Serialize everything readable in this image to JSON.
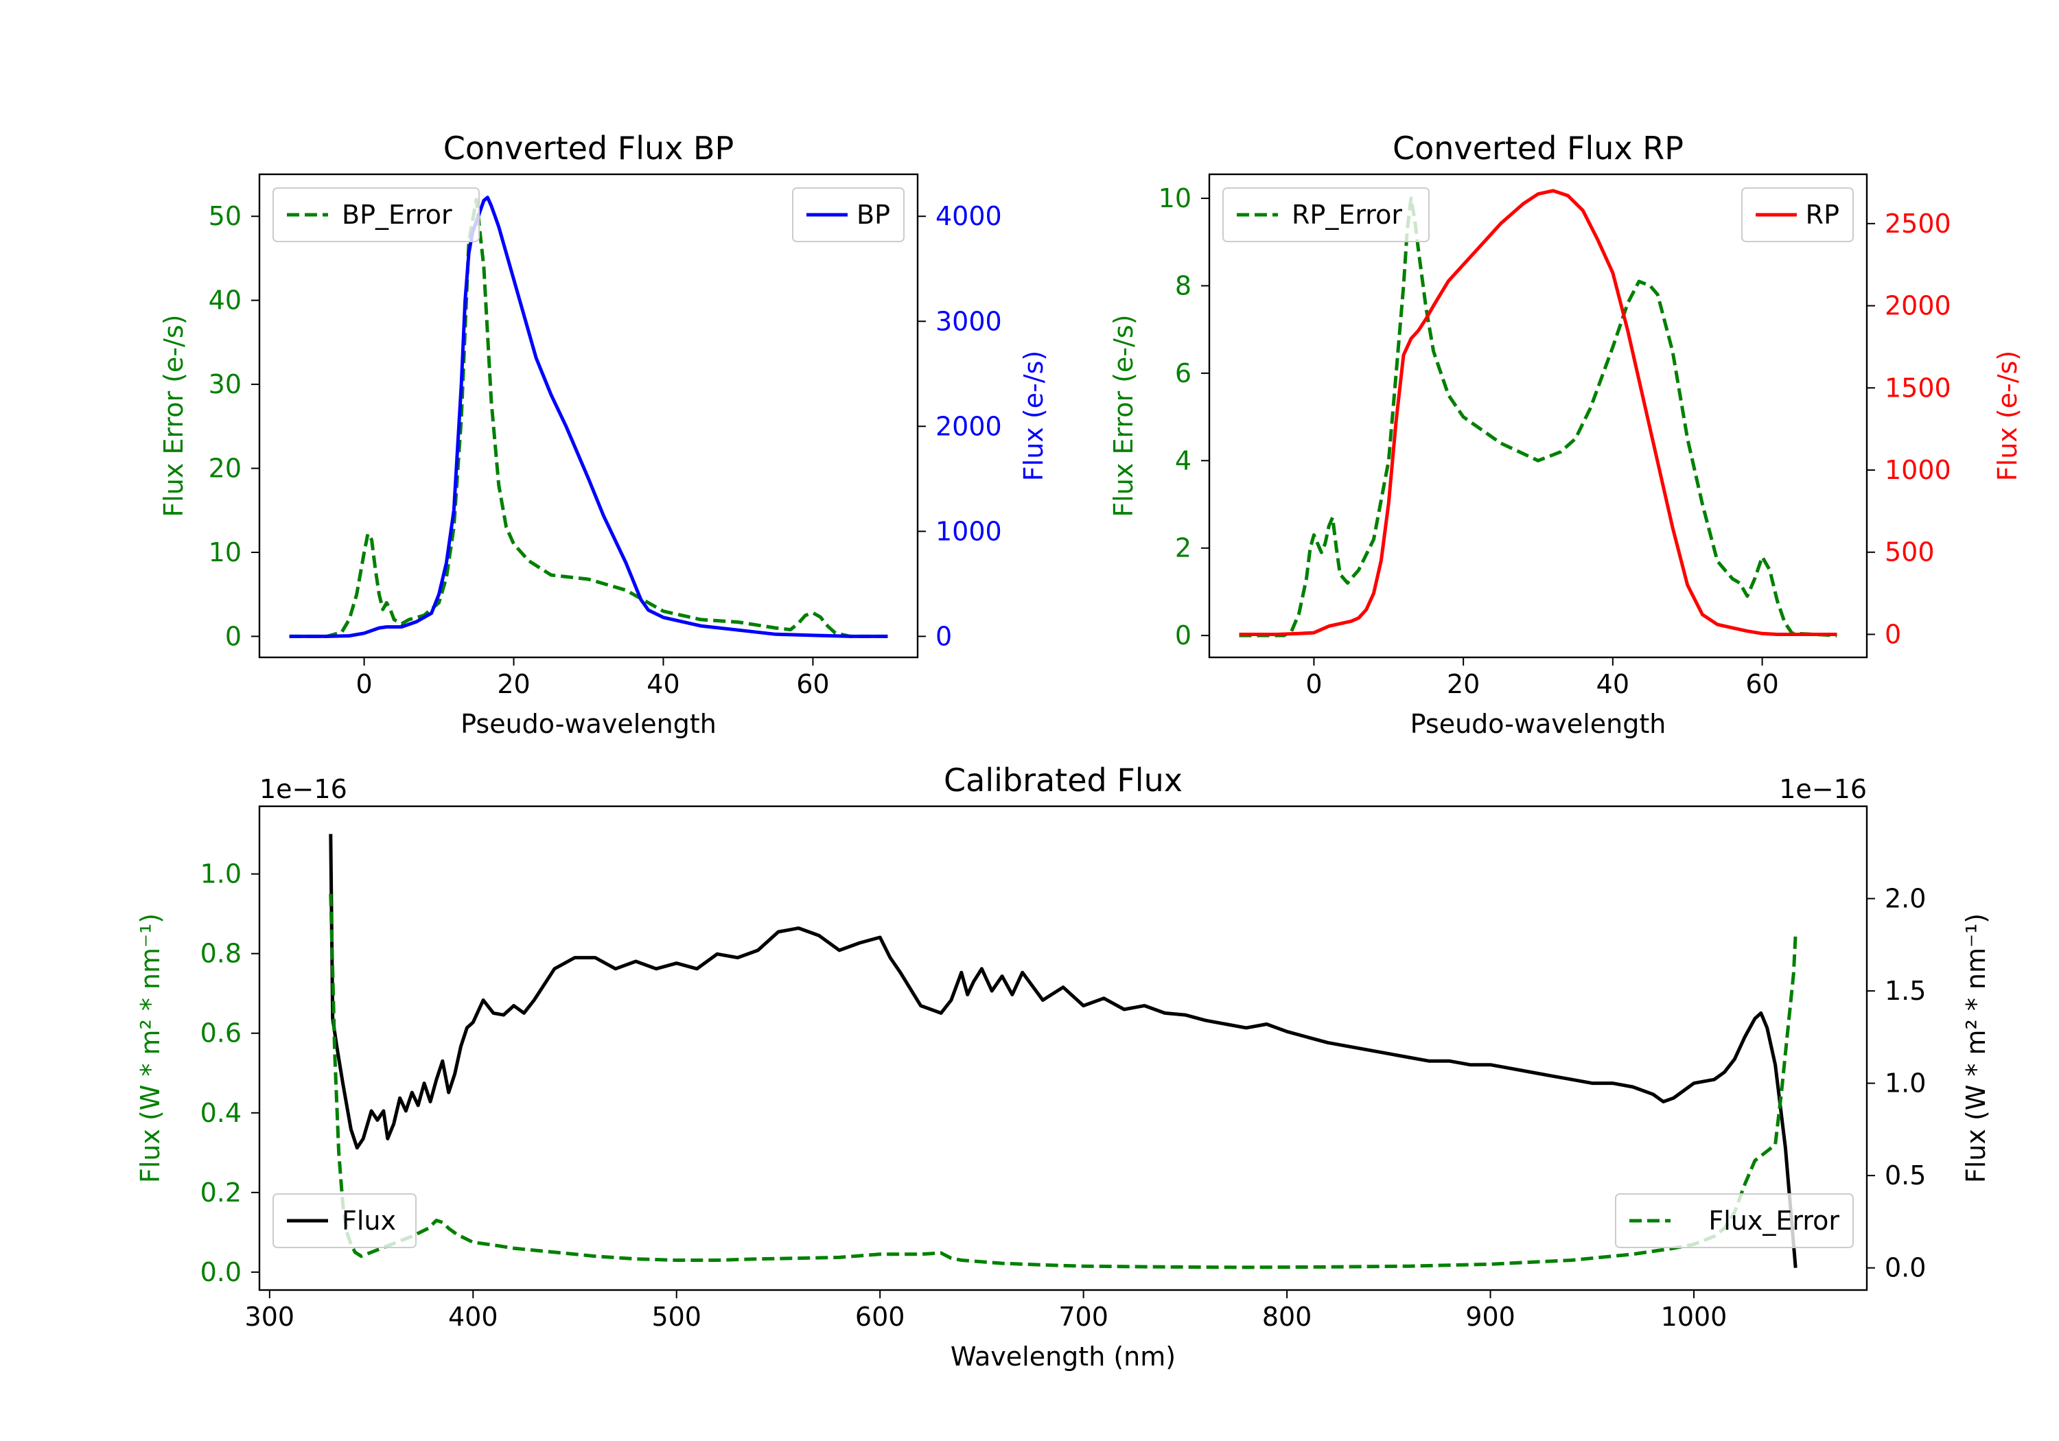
{
  "colors": {
    "bp": "#0000ff",
    "rp": "#ff0000",
    "error": "#008000",
    "flux": "#000000"
  },
  "chart_data": [
    {
      "id": "bp",
      "type": "line",
      "title": "Converted Flux BP",
      "xlabel": "Pseudo-wavelength",
      "ylabel_left": "Flux Error (e-/s)",
      "ylabel_right": "Flux (e-/s)",
      "xlim": [
        -14,
        74
      ],
      "ylim_left": [
        -2.5,
        55
      ],
      "ylim_right": [
        -200,
        4400
      ],
      "xticks": [
        0,
        20,
        40,
        60
      ],
      "yticks_left": [
        0,
        10,
        20,
        30,
        40,
        50
      ],
      "yticks_right": [
        0,
        1000,
        2000,
        3000,
        4000
      ],
      "legend_left": "BP_Error",
      "legend_right": "BP",
      "series": [
        {
          "name": "BP_Error",
          "axis": "left",
          "style": "dashed",
          "x": [
            -10,
            -5,
            -3,
            -2,
            -1,
            0,
            0.5,
            1,
            1.5,
            2,
            2.5,
            3,
            3.5,
            4,
            5,
            6,
            8,
            10,
            11,
            12,
            13,
            14,
            15,
            16,
            17,
            18,
            19,
            20,
            22,
            25,
            30,
            35,
            40,
            45,
            50,
            55,
            57,
            58,
            59,
            60,
            61,
            62,
            63,
            65,
            70
          ],
          "y": [
            0,
            0,
            0.5,
            2,
            5,
            10,
            12.2,
            11.5,
            8,
            5,
            3.2,
            4,
            3.2,
            2,
            1.5,
            2,
            2.5,
            4,
            7,
            13,
            26,
            47,
            52,
            44,
            28,
            18,
            13,
            11,
            9,
            7.3,
            6.8,
            5.5,
            3,
            2,
            1.7,
            1,
            0.8,
            1.5,
            2.5,
            2.8,
            2.3,
            1.2,
            0.4,
            0,
            0
          ]
        },
        {
          "name": "BP",
          "axis": "right",
          "style": "solid",
          "x": [
            -10,
            -5,
            -2,
            0,
            2,
            3,
            5,
            7,
            9,
            10,
            11,
            12,
            13,
            13.5,
            14,
            14.5,
            15,
            15.5,
            16,
            16.5,
            17,
            17.5,
            18,
            19,
            20,
            22,
            23,
            25,
            27,
            30,
            32,
            35,
            37,
            38,
            40,
            45,
            50,
            55,
            60,
            65,
            70
          ],
          "y": [
            0,
            0,
            5,
            30,
            80,
            90,
            90,
            140,
            220,
            400,
            700,
            1200,
            2400,
            3200,
            3650,
            3850,
            3950,
            4050,
            4150,
            4180,
            4100,
            4000,
            3900,
            3650,
            3400,
            2900,
            2650,
            2300,
            2000,
            1500,
            1150,
            700,
            350,
            250,
            180,
            100,
            60,
            20,
            10,
            0,
            0
          ]
        }
      ]
    },
    {
      "id": "rp",
      "type": "line",
      "title": "Converted Flux RP",
      "xlabel": "Pseudo-wavelength",
      "ylabel_left": "Flux Error (e-/s)",
      "ylabel_right": "Flux (e-/s)",
      "xlim": [
        -14,
        74
      ],
      "ylim_left": [
        -0.5,
        10.55
      ],
      "ylim_right": [
        -140,
        2800
      ],
      "xticks": [
        0,
        20,
        40,
        60
      ],
      "yticks_left": [
        0,
        2,
        4,
        6,
        8,
        10
      ],
      "yticks_right": [
        0,
        500,
        1000,
        1500,
        2000,
        2500
      ],
      "legend_left": "RP_Error",
      "legend_right": "RP",
      "series": [
        {
          "name": "RP_Error",
          "axis": "left",
          "style": "dashed",
          "x": [
            -10,
            -4,
            -3,
            -2,
            -1,
            -0.5,
            0,
            0.5,
            1,
            1.5,
            2,
            2.5,
            3,
            3.5,
            4,
            4.5,
            5,
            6,
            8,
            10,
            11,
            12,
            12.5,
            13,
            13.5,
            14,
            15,
            16,
            18,
            20,
            25,
            30,
            33,
            35,
            37,
            40,
            42,
            43.5,
            45,
            46,
            48,
            50,
            52,
            54,
            56,
            57,
            58,
            59,
            60,
            61,
            62,
            63,
            64,
            70
          ],
          "y": [
            0,
            0,
            0.1,
            0.5,
            1.3,
            2,
            2.3,
            2.1,
            1.9,
            2.1,
            2.5,
            2.7,
            2,
            1.4,
            1.3,
            1.2,
            1.3,
            1.5,
            2.2,
            4,
            6,
            8,
            9.3,
            10,
            9.5,
            8.8,
            7.5,
            6.5,
            5.5,
            5,
            4.4,
            4,
            4.2,
            4.5,
            5.2,
            6.6,
            7.6,
            8.1,
            8,
            7.8,
            6.5,
            4.5,
            3,
            1.7,
            1.3,
            1.2,
            0.9,
            1.3,
            1.8,
            1.5,
            0.8,
            0.3,
            0.05,
            0
          ]
        },
        {
          "name": "RP",
          "axis": "right",
          "style": "solid",
          "x": [
            -10,
            -5,
            -2,
            0,
            1,
            2,
            3,
            5,
            6,
            7,
            8,
            9,
            10,
            11,
            12,
            13,
            14,
            15,
            16,
            18,
            20,
            23,
            25,
            28,
            30,
            32,
            34,
            36,
            38,
            40,
            42,
            44,
            46,
            48,
            50,
            52,
            54,
            56,
            57,
            58,
            60,
            62,
            65,
            70
          ],
          "y": [
            0,
            0,
            5,
            10,
            30,
            50,
            60,
            80,
            100,
            150,
            250,
            450,
            800,
            1300,
            1700,
            1800,
            1850,
            1920,
            2000,
            2150,
            2250,
            2400,
            2500,
            2620,
            2680,
            2700,
            2670,
            2580,
            2400,
            2200,
            1850,
            1450,
            1050,
            650,
            300,
            120,
            60,
            40,
            30,
            20,
            5,
            0,
            0,
            0
          ]
        }
      ]
    },
    {
      "id": "calibrated",
      "type": "line",
      "title": "Calibrated Flux",
      "xlabel": "Wavelength (nm)",
      "ylabel_left": "Flux (W * m² * nm⁻¹)",
      "ylabel_right": "Flux (W * m² * nm⁻¹)",
      "offset_left": "1e−16",
      "offset_right": "1e−16",
      "xlim": [
        295,
        1085
      ],
      "ylim_left": [
        -0.045,
        1.17
      ],
      "ylim_right": [
        -0.12,
        2.5
      ],
      "xticks": [
        300,
        400,
        500,
        600,
        700,
        800,
        900,
        1000
      ],
      "yticks_left": [
        0.0,
        0.2,
        0.4,
        0.6,
        0.8,
        1.0
      ],
      "yticks_right": [
        0.0,
        0.5,
        1.0,
        1.5,
        2.0
      ],
      "legend_left": "Flux",
      "legend_right": "Flux_Error",
      "series": [
        {
          "name": "Flux",
          "axis": "right",
          "style": "solid",
          "x": [
            330,
            331,
            333,
            336,
            340,
            343,
            346,
            350,
            353,
            356,
            358,
            361,
            364,
            367,
            370,
            373,
            376,
            379,
            382,
            385,
            388,
            391,
            394,
            397,
            400,
            405,
            410,
            415,
            420,
            425,
            430,
            440,
            450,
            460,
            470,
            480,
            490,
            500,
            510,
            520,
            530,
            540,
            550,
            560,
            570,
            580,
            590,
            600,
            605,
            610,
            620,
            630,
            635,
            640,
            643,
            646,
            650,
            655,
            660,
            665,
            670,
            680,
            690,
            700,
            710,
            720,
            730,
            740,
            750,
            760,
            770,
            780,
            790,
            800,
            810,
            820,
            830,
            840,
            850,
            860,
            870,
            880,
            890,
            900,
            910,
            920,
            930,
            940,
            950,
            960,
            970,
            980,
            985,
            990,
            1000,
            1010,
            1015,
            1020,
            1025,
            1030,
            1033,
            1036,
            1040,
            1045,
            1050
          ],
          "y": [
            2.35,
            1.35,
            1.2,
            1.0,
            0.75,
            0.65,
            0.7,
            0.85,
            0.8,
            0.85,
            0.7,
            0.78,
            0.92,
            0.85,
            0.95,
            0.88,
            1.0,
            0.9,
            1.02,
            1.12,
            0.95,
            1.05,
            1.2,
            1.3,
            1.33,
            1.45,
            1.38,
            1.37,
            1.42,
            1.38,
            1.45,
            1.62,
            1.68,
            1.68,
            1.62,
            1.66,
            1.62,
            1.65,
            1.62,
            1.7,
            1.68,
            1.72,
            1.82,
            1.84,
            1.8,
            1.72,
            1.76,
            1.79,
            1.68,
            1.6,
            1.42,
            1.38,
            1.45,
            1.6,
            1.48,
            1.55,
            1.62,
            1.5,
            1.58,
            1.48,
            1.6,
            1.45,
            1.52,
            1.42,
            1.46,
            1.4,
            1.42,
            1.38,
            1.37,
            1.34,
            1.32,
            1.3,
            1.32,
            1.28,
            1.25,
            1.22,
            1.2,
            1.18,
            1.16,
            1.14,
            1.12,
            1.12,
            1.1,
            1.1,
            1.08,
            1.06,
            1.04,
            1.02,
            1.0,
            1.0,
            0.98,
            0.94,
            0.9,
            0.92,
            1.0,
            1.02,
            1.06,
            1.13,
            1.25,
            1.35,
            1.38,
            1.3,
            1.1,
            0.65,
            0.0
          ]
        },
        {
          "name": "Flux_Error",
          "axis": "left",
          "style": "dashed",
          "x": [
            330,
            332,
            334,
            336,
            338,
            340,
            342,
            345,
            350,
            360,
            370,
            378,
            382,
            385,
            388,
            392,
            396,
            400,
            410,
            420,
            440,
            460,
            480,
            500,
            520,
            540,
            560,
            580,
            600,
            620,
            630,
            635,
            640,
            660,
            680,
            700,
            740,
            780,
            820,
            860,
            900,
            940,
            970,
            990,
            1000,
            1010,
            1015,
            1020,
            1025,
            1030,
            1035,
            1040,
            1043,
            1046,
            1049,
            1050
          ],
          "y": [
            0.95,
            0.55,
            0.3,
            0.17,
            0.1,
            0.07,
            0.05,
            0.04,
            0.05,
            0.07,
            0.09,
            0.11,
            0.13,
            0.125,
            0.11,
            0.095,
            0.085,
            0.075,
            0.068,
            0.06,
            0.05,
            0.04,
            0.033,
            0.03,
            0.03,
            0.033,
            0.035,
            0.037,
            0.045,
            0.045,
            0.048,
            0.035,
            0.03,
            0.022,
            0.018,
            0.015,
            0.013,
            0.012,
            0.013,
            0.015,
            0.02,
            0.03,
            0.045,
            0.06,
            0.07,
            0.09,
            0.11,
            0.15,
            0.22,
            0.28,
            0.3,
            0.32,
            0.45,
            0.6,
            0.75,
            0.85
          ]
        }
      ]
    }
  ]
}
